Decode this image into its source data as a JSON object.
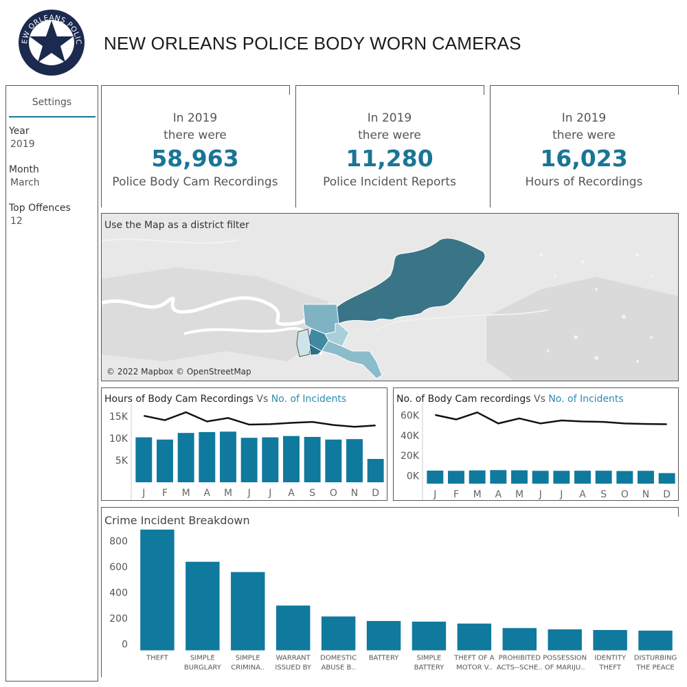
{
  "header": {
    "title": "NEW ORLEANS POLICE BODY WORN CAMERAS",
    "logo_text": "NEW ORLEANS POLICE"
  },
  "sidebar": {
    "heading": "Settings",
    "filters": [
      {
        "label": "Year",
        "value": "2019"
      },
      {
        "label": "Month",
        "value": "March"
      },
      {
        "label": "Top Offences",
        "value": "12"
      }
    ]
  },
  "kpis": [
    {
      "line1": "In 2019",
      "line2": "there were",
      "value": "58,963",
      "caption": "Police Body Cam Recordings"
    },
    {
      "line1": "In 2019",
      "line2": "there were",
      "value": "11,280",
      "caption": "Police Incident Reports"
    },
    {
      "line1": "In 2019",
      "line2": "there were",
      "value": "16,023",
      "caption": "Hours of Recordings"
    }
  ],
  "map": {
    "title": "Use the Map as a district filter",
    "attribution": "© 2022 Mapbox © OpenStreetMap"
  },
  "colors": {
    "bar": "#10799e",
    "line": "#111111",
    "accent_text": "#2e8ab0",
    "kpi_number": "#1a7595"
  },
  "chart_data": [
    {
      "type": "bar",
      "title": "Hours of Body Cam Recordings",
      "title_vs": "Vs",
      "title_accent": "No. of Incidents",
      "categories": [
        "J",
        "F",
        "M",
        "A",
        "M",
        "J",
        "J",
        "A",
        "S",
        "O",
        "N",
        "D"
      ],
      "y_ticks": [
        "5K",
        "10K",
        "15K"
      ],
      "ylim": [
        0,
        17000
      ],
      "series": [
        {
          "type": "bar",
          "values": [
            10200,
            9700,
            11200,
            11400,
            11500,
            10100,
            10200,
            10500,
            10300,
            9700,
            9800,
            5300
          ]
        },
        {
          "type": "line",
          "values": [
            15100,
            14100,
            15900,
            13800,
            14600,
            13100,
            13200,
            13500,
            13700,
            13000,
            12600,
            12900
          ]
        }
      ]
    },
    {
      "type": "bar",
      "title": "No. of Body Cam recordings",
      "title_vs": "Vs",
      "title_accent": "No. of Incidents",
      "categories": [
        "J",
        "F",
        "M",
        "A",
        "M",
        "J",
        "J",
        "A",
        "S",
        "O",
        "N",
        "D"
      ],
      "y_ticks": [
        "0K",
        "20K",
        "40K",
        "60K"
      ],
      "ylim": [
        -8000,
        68000
      ],
      "series": [
        {
          "type": "bar",
          "values": [
            5000,
            4800,
            5200,
            5500,
            5300,
            4800,
            4800,
            4900,
            4900,
            4600,
            4800,
            2500
          ]
        },
        {
          "type": "line",
          "values": [
            60500,
            56000,
            63000,
            52000,
            57000,
            52000,
            55000,
            54000,
            53500,
            52000,
            51500,
            51200
          ]
        }
      ]
    },
    {
      "type": "bar",
      "title": "Crime Incident Breakdown",
      "categories": [
        [
          "THEFT"
        ],
        [
          "SIMPLE",
          "BURGLARY"
        ],
        [
          "SIMPLE",
          "CRIMINA.."
        ],
        [
          "WARRANT",
          "ISSUED BY"
        ],
        [
          "DOMESTIC",
          "ABUSE B.."
        ],
        [
          "BATTERY"
        ],
        [
          "SIMPLE",
          "BATTERY"
        ],
        [
          "THEFT OF A",
          "MOTOR V.."
        ],
        [
          "PROHIBITED",
          "ACTS--SCHE.."
        ],
        [
          "POSSESSION",
          "OF MARIJU.."
        ],
        [
          "IDENTITY",
          "THEFT"
        ],
        [
          "DISTURBING",
          "THE PEACE"
        ]
      ],
      "values": [
        890,
        640,
        560,
        300,
        215,
        180,
        175,
        160,
        125,
        115,
        110,
        105
      ],
      "y_ticks": [
        "0",
        "200",
        "400",
        "600",
        "800"
      ],
      "ylim": [
        -50,
        900
      ]
    }
  ]
}
